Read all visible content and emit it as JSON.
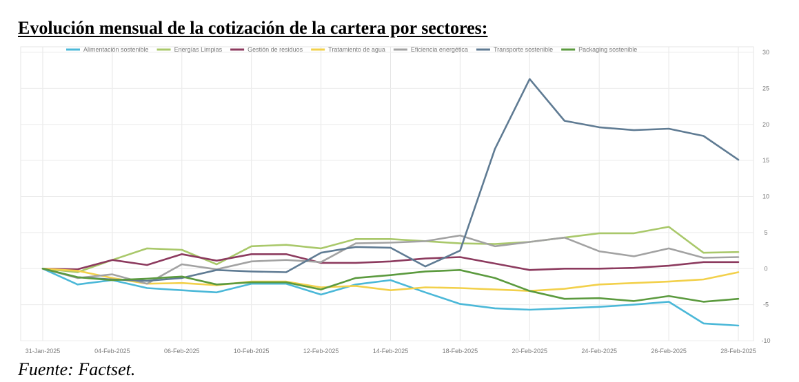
{
  "title": "Evolución mensual de la cotización de la cartera por sectores:",
  "source": "Fuente: Factset.",
  "chart_data": {
    "type": "line",
    "x": [
      "31-Jan-2025",
      "03-Feb-2025",
      "04-Feb-2025",
      "05-Feb-2025",
      "06-Feb-2025",
      "07-Feb-2025",
      "10-Feb-2025",
      "11-Feb-2025",
      "12-Feb-2025",
      "13-Feb-2025",
      "14-Feb-2025",
      "17-Feb-2025",
      "18-Feb-2025",
      "19-Feb-2025",
      "20-Feb-2025",
      "21-Feb-2025",
      "24-Feb-2025",
      "25-Feb-2025",
      "26-Feb-2025",
      "27-Feb-2025",
      "28-Feb-2025"
    ],
    "xtick_labels": [
      "31-Jan-2025",
      "04-Feb-2025",
      "06-Feb-2025",
      "10-Feb-2025",
      "12-Feb-2025",
      "14-Feb-2025",
      "18-Feb-2025",
      "20-Feb-2025",
      "24-Feb-2025",
      "26-Feb-2025",
      "28-Feb-2025"
    ],
    "yticks": [
      30,
      25,
      20,
      15,
      10,
      5,
      0,
      -5,
      -10
    ],
    "ylim": [
      -10,
      30
    ],
    "y_axis_side": "right",
    "grid": true,
    "legend": "top",
    "series": [
      {
        "name": "Alimentación sostenible",
        "color": "#4bb8d8",
        "values": [
          0,
          -2.2,
          -1.6,
          -2.7,
          -3.0,
          -3.3,
          -2.1,
          -2.1,
          -3.6,
          -2.2,
          -1.6,
          -3.3,
          -4.9,
          -5.5,
          -5.7,
          -5.5,
          -5.3,
          -5.0,
          -4.6,
          -7.6,
          -7.9
        ]
      },
      {
        "name": "Energías Limpias",
        "color": "#a9c86a",
        "values": [
          0,
          -0.5,
          1.2,
          2.8,
          2.6,
          0.6,
          3.1,
          3.3,
          2.8,
          4.1,
          4.1,
          3.8,
          3.5,
          3.4,
          3.7,
          4.3,
          4.9,
          4.9,
          5.8,
          2.2,
          2.3
        ]
      },
      {
        "name": "Gestión de residuos",
        "color": "#8c3a5e",
        "values": [
          0,
          -0.1,
          1.2,
          0.5,
          2.0,
          1.1,
          2.0,
          2.0,
          0.8,
          0.8,
          1.0,
          1.4,
          1.6,
          0.7,
          -0.2,
          0.0,
          0.0,
          0.1,
          0.4,
          0.9,
          0.9
        ]
      },
      {
        "name": "Tratamiento de agua",
        "color": "#f2d04a",
        "values": [
          0,
          -0.3,
          -1.3,
          -2.1,
          -2.0,
          -2.3,
          -1.8,
          -1.8,
          -2.6,
          -2.4,
          -3.0,
          -2.6,
          -2.7,
          -2.9,
          -3.1,
          -2.8,
          -2.2,
          -2.0,
          -1.8,
          -1.5,
          -0.5
        ]
      },
      {
        "name": "Eficiencia energética",
        "color": "#a2a2a2",
        "values": [
          0,
          -1.3,
          -0.8,
          -2.1,
          0.6,
          -0.1,
          1.0,
          1.2,
          0.9,
          3.5,
          3.6,
          3.8,
          4.6,
          3.1,
          3.7,
          4.3,
          2.4,
          1.7,
          2.8,
          1.5,
          1.6
        ]
      },
      {
        "name": "Transporte sostenible",
        "color": "#5f7b93",
        "values": [
          0,
          -1.2,
          -1.5,
          -1.7,
          -1.3,
          -0.2,
          -0.4,
          -0.5,
          2.2,
          3.0,
          2.9,
          0.3,
          2.5,
          16.6,
          26.3,
          20.5,
          19.6,
          19.2,
          19.4,
          18.4,
          15.1
        ]
      },
      {
        "name": "Packaging sostenible",
        "color": "#5b9a3e",
        "values": [
          0,
          -1.2,
          -1.6,
          -1.4,
          -1.1,
          -2.2,
          -1.9,
          -1.9,
          -2.9,
          -1.3,
          -0.9,
          -0.4,
          -0.2,
          -1.3,
          -3.1,
          -4.2,
          -4.1,
          -4.5,
          -3.8,
          -4.6,
          -4.2
        ]
      }
    ]
  }
}
